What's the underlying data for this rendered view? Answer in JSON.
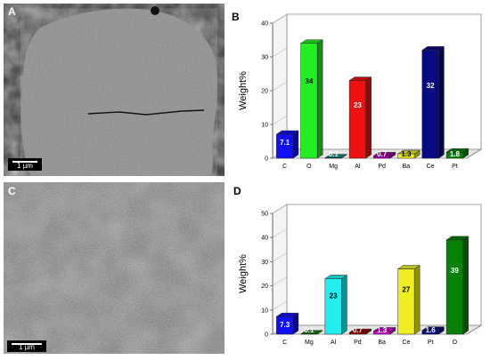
{
  "panels": {
    "a": {
      "letter": "A",
      "scale_label": "1 µm"
    },
    "b": {
      "letter": "B"
    },
    "c": {
      "letter": "C",
      "scale_label": "1 µm"
    },
    "d": {
      "letter": "D"
    }
  },
  "chart_data": [
    {
      "type": "bar",
      "ylabel": "Weight%",
      "xlabel": "",
      "ylim": [
        0,
        40
      ],
      "yticks": [
        0,
        10,
        20,
        30,
        40
      ],
      "grid": false,
      "categories": [
        "C",
        "O",
        "Mg",
        "Al",
        "Pd",
        "Ba",
        "Ce",
        "Pt"
      ],
      "values": [
        7.1,
        34,
        0.1,
        23,
        0.7,
        1.3,
        32,
        1.8
      ],
      "labels": [
        "7.1",
        "34",
        "0.1",
        "23",
        "0.7",
        "1.3",
        "32",
        "1.8"
      ],
      "colors": [
        "#1010f0",
        "#22ee22",
        "#108a8a",
        "#ee1111",
        "#a000a0",
        "#eeee22",
        "#0a0a80",
        "#0a800a"
      ]
    },
    {
      "type": "bar",
      "ylabel": "Weight%",
      "xlabel": "",
      "ylim": [
        0,
        50
      ],
      "yticks": [
        0,
        10,
        20,
        30,
        40,
        50
      ],
      "grid": false,
      "categories": [
        "C",
        "Mg",
        "Al",
        "Pd",
        "Ba",
        "Ce",
        "Pt",
        "O"
      ],
      "values": [
        7.3,
        0.1,
        23,
        0.7,
        1.3,
        27,
        1.6,
        39
      ],
      "labels": [
        "7.3",
        "0.1",
        "23",
        "0.7",
        "1.3",
        "27",
        "1.6",
        "39"
      ],
      "colors": [
        "#1010f0",
        "#0a800a",
        "#22eeee",
        "#a00000",
        "#cc00cc",
        "#eeee22",
        "#0a0a80",
        "#0a800a"
      ]
    }
  ]
}
